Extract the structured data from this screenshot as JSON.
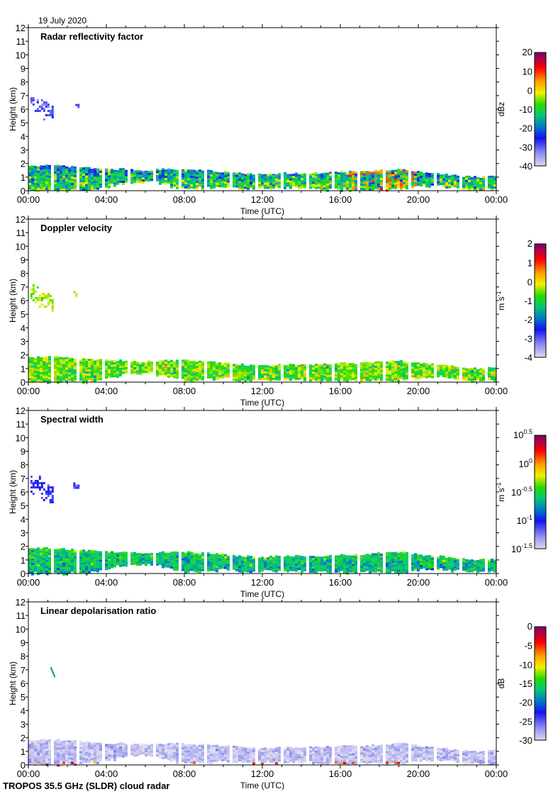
{
  "date_label": "19 July 2020",
  "instrument_label": "TROPOS 35.5 GHz (SLDR) cloud radar",
  "chart_data": [
    {
      "type": "heatmap",
      "title": "Radar reflectivity factor",
      "xlabel": "Time (UTC)",
      "ylabel": "Height (km)",
      "xticks": [
        "00:00",
        "04:00",
        "08:00",
        "12:00",
        "16:00",
        "20:00",
        "00:00"
      ],
      "xlim_hours": [
        0,
        24
      ],
      "yticks": [
        "0",
        "1",
        "2",
        "3",
        "4",
        "5",
        "6",
        "7",
        "8",
        "9",
        "10",
        "11",
        "12"
      ],
      "ylim_km": [
        0,
        12
      ],
      "colorbar": {
        "unit": "dBz",
        "unit_sup": "",
        "range": [
          -40,
          20
        ],
        "ticks": [
          {
            "v": 20,
            "t": "20",
            "sup": ""
          },
          {
            "v": 10,
            "t": "10",
            "sup": ""
          },
          {
            "v": 0,
            "t": "0",
            "sup": ""
          },
          {
            "v": -10,
            "t": "-10",
            "sup": ""
          },
          {
            "v": -20,
            "t": "-20",
            "sup": ""
          },
          {
            "v": -30,
            "t": "-30",
            "sup": ""
          },
          {
            "v": -40,
            "t": "-40",
            "sup": ""
          }
        ]
      },
      "typical_value": -12,
      "spread": 9,
      "height_gradient": -6,
      "hotspot_hours": [
        16.5,
        20
      ],
      "hotspot_value": 6,
      "upper_cloud": true
    },
    {
      "type": "heatmap",
      "title": "Doppler velocity",
      "xlabel": "Time (UTC)",
      "ylabel": "Height (km)",
      "xticks": [
        "00:00",
        "04:00",
        "08:00",
        "12:00",
        "16:00",
        "20:00",
        "00:00"
      ],
      "xlim_hours": [
        0,
        24
      ],
      "yticks": [
        "0",
        "1",
        "2",
        "3",
        "4",
        "5",
        "6",
        "7",
        "8",
        "9",
        "10",
        "11",
        "12"
      ],
      "ylim_km": [
        0,
        12
      ],
      "colorbar": {
        "unit": "m s",
        "unit_sup": "-1",
        "range": [
          -4,
          2
        ],
        "ticks": [
          {
            "v": 2,
            "t": "2",
            "sup": ""
          },
          {
            "v": 1,
            "t": "1",
            "sup": ""
          },
          {
            "v": 0,
            "t": "0",
            "sup": ""
          },
          {
            "v": -1,
            "t": "-1",
            "sup": ""
          },
          {
            "v": -2,
            "t": "-2",
            "sup": ""
          },
          {
            "v": -3,
            "t": "-3",
            "sup": ""
          },
          {
            "v": -4,
            "t": "-4",
            "sup": ""
          }
        ]
      },
      "typical_value": -0.6,
      "spread": 0.6,
      "height_gradient": 0,
      "upper_cloud": true,
      "upper_value": -0.3
    },
    {
      "type": "heatmap",
      "title": "Spectral width",
      "xlabel": "Time (UTC)",
      "ylabel": "Height (km)",
      "xticks": [
        "00:00",
        "04:00",
        "08:00",
        "12:00",
        "16:00",
        "20:00",
        "00:00"
      ],
      "xlim_hours": [
        0,
        24
      ],
      "yticks": [
        "0",
        "1",
        "2",
        "3",
        "4",
        "5",
        "6",
        "7",
        "8",
        "9",
        "10",
        "11",
        "12"
      ],
      "ylim_km": [
        0,
        12
      ],
      "colorbar": {
        "unit": "m s",
        "unit_sup": "-1",
        "range": [
          -1.5,
          0.5
        ],
        "ticks": [
          {
            "v": 0.5,
            "t": "10",
            "sup": "0.5"
          },
          {
            "v": 0,
            "t": "10",
            "sup": "0"
          },
          {
            "v": -0.5,
            "t": "10",
            "sup": "-0.5"
          },
          {
            "v": -1,
            "t": "10",
            "sup": "-1"
          },
          {
            "v": -1.5,
            "t": "10",
            "sup": "-1.5"
          }
        ]
      },
      "typical_value": -0.6,
      "spread": 0.18,
      "height_gradient": 0.1,
      "upper_cloud": true,
      "upper_value": -1.05
    },
    {
      "type": "heatmap",
      "title": "Linear depolarisation ratio",
      "xlabel": "Time (UTC)",
      "ylabel": "Height (km)",
      "xticks": [
        "00:00",
        "04:00",
        "08:00",
        "12:00",
        "16:00",
        "20:00",
        "00:00"
      ],
      "xlim_hours": [
        0,
        24
      ],
      "yticks": [
        "0",
        "1",
        "2",
        "3",
        "4",
        "5",
        "6",
        "7",
        "8",
        "9",
        "10",
        "11",
        "12"
      ],
      "ylim_km": [
        0,
        12
      ],
      "colorbar": {
        "unit": "dB",
        "unit_sup": "",
        "range": [
          -30,
          0
        ],
        "ticks": [
          {
            "v": 0,
            "t": "0",
            "sup": ""
          },
          {
            "v": -5,
            "t": "-5",
            "sup": ""
          },
          {
            "v": -10,
            "t": "-10",
            "sup": ""
          },
          {
            "v": -15,
            "t": "-15",
            "sup": ""
          },
          {
            "v": -20,
            "t": "-20",
            "sup": ""
          },
          {
            "v": -25,
            "t": "-25",
            "sup": ""
          },
          {
            "v": -30,
            "t": "-30",
            "sup": ""
          }
        ]
      },
      "typical_value": -28.5,
      "spread": 1.5,
      "height_gradient": 0,
      "near_ground_value": -5,
      "upper_cloud": false,
      "upper_speck": true
    }
  ],
  "cloud_layer": {
    "hours": [
      0,
      1,
      2,
      3,
      4,
      5,
      6,
      7,
      8,
      9,
      10,
      11,
      12,
      13,
      14,
      15,
      16,
      17,
      18,
      19,
      20,
      21,
      22,
      23,
      24
    ],
    "top_km": [
      1.8,
      1.9,
      1.8,
      1.7,
      1.6,
      1.6,
      1.5,
      1.6,
      1.6,
      1.5,
      1.4,
      1.3,
      1.2,
      1.3,
      1.3,
      1.3,
      1.4,
      1.4,
      1.5,
      1.6,
      1.4,
      1.3,
      1.1,
      1.0,
      1.1
    ],
    "base_km": [
      0,
      0,
      0,
      0.1,
      0.3,
      0.6,
      0.7,
      0.5,
      0.1,
      0.2,
      0.3,
      0.1,
      0.2,
      0.2,
      0.2,
      0.1,
      0.1,
      0.1,
      0.1,
      0.1,
      0.3,
      0.4,
      0.2,
      0.1,
      0.1
    ]
  },
  "upper_cloud": {
    "start_hour": 0.1,
    "end_hour": 1.3,
    "base_km": 5.3,
    "top_km": 7.2,
    "patch_start_hour": 2.3,
    "patch_end_hour": 2.6,
    "patch_base_km": 6.1,
    "patch_top_km": 6.7
  }
}
